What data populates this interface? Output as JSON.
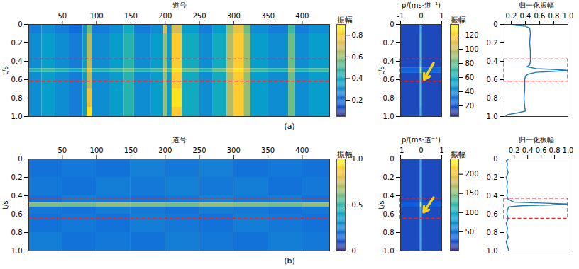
{
  "chart_data": [
    {
      "type": "heatmap",
      "caption": "(a)",
      "x_label": "道号",
      "y_label": "t/s",
      "xlim": [
        1,
        440
      ],
      "xticks": [
        50,
        100,
        150,
        200,
        250,
        300,
        350,
        400
      ],
      "ylim": [
        0,
        1
      ],
      "yticks": [
        0,
        0.2,
        0.4,
        0.6,
        0.8,
        {
          "value": 1,
          "label": "1.0"
        }
      ],
      "x_edges": [
        1,
        20,
        40,
        60,
        80,
        86,
        94,
        120,
        140,
        155,
        180,
        198,
        203,
        210,
        225,
        250,
        270,
        290,
        300,
        315,
        325,
        350,
        380,
        390,
        410,
        440
      ],
      "y_edges": [
        0,
        0.1,
        0.3,
        0.48,
        0.52,
        0.7,
        0.9,
        1
      ],
      "cells": [
        [
          0.25,
          0.3,
          0.25,
          0.2,
          0.3,
          0.55,
          0.25,
          0.3,
          0.4,
          0.25,
          0.3,
          0.7,
          0.3,
          0.7,
          0.35,
          0.25,
          0.35,
          0.6,
          0.75,
          0.55,
          0.3,
          0.25,
          0.5,
          0.25,
          0.3
        ],
        [
          0.3,
          0.35,
          0.3,
          0.25,
          0.35,
          0.65,
          0.3,
          0.35,
          0.45,
          0.3,
          0.35,
          0.6,
          0.35,
          0.8,
          0.4,
          0.3,
          0.4,
          0.65,
          0.8,
          0.6,
          0.35,
          0.3,
          0.55,
          0.3,
          0.35
        ],
        [
          0.3,
          0.35,
          0.3,
          0.25,
          0.35,
          0.65,
          0.3,
          0.35,
          0.45,
          0.3,
          0.35,
          0.6,
          0.35,
          0.8,
          0.4,
          0.3,
          0.4,
          0.65,
          0.8,
          0.6,
          0.35,
          0.3,
          0.55,
          0.3,
          0.35
        ],
        [
          0.45,
          0.5,
          0.45,
          0.4,
          0.5,
          0.75,
          0.45,
          0.5,
          0.55,
          0.45,
          0.5,
          0.7,
          0.5,
          0.85,
          0.55,
          0.45,
          0.55,
          0.75,
          0.85,
          0.7,
          0.5,
          0.45,
          0.65,
          0.45,
          0.5
        ],
        [
          0.3,
          0.35,
          0.3,
          0.25,
          0.35,
          0.65,
          0.3,
          0.35,
          0.45,
          0.3,
          0.35,
          0.6,
          0.35,
          0.8,
          0.4,
          0.3,
          0.4,
          0.65,
          0.8,
          0.6,
          0.35,
          0.3,
          0.55,
          0.3,
          0.35
        ],
        [
          0.3,
          0.35,
          0.3,
          0.25,
          0.35,
          0.75,
          0.3,
          0.35,
          0.45,
          0.3,
          0.35,
          0.6,
          0.35,
          0.85,
          0.4,
          0.3,
          0.4,
          0.65,
          0.8,
          0.6,
          0.35,
          0.3,
          0.55,
          0.3,
          0.35
        ],
        [
          0.3,
          0.35,
          0.3,
          0.25,
          0.35,
          0.85,
          0.3,
          0.35,
          0.45,
          0.3,
          0.35,
          0.6,
          0.35,
          0.8,
          0.4,
          0.3,
          0.4,
          0.65,
          0.8,
          0.6,
          0.35,
          0.3,
          0.55,
          0.3,
          0.35
        ]
      ],
      "colorbar": {
        "label": "振幅",
        "range": [
          0.05,
          0.9
        ],
        "ticks": [
          0.2,
          0.4,
          0.6,
          0.8
        ]
      },
      "highlight_t": [
        0.38,
        0.62
      ]
    },
    {
      "type": "heatmap",
      "x_label": "p/(ms·道⁻¹)",
      "y_label": "t/s",
      "xlim": [
        -1,
        1
      ],
      "xticks": [
        -1,
        0,
        1
      ],
      "ylim": [
        0,
        1
      ],
      "yticks": [
        0,
        0.2,
        0.4,
        0.6,
        0.8,
        {
          "value": 1,
          "label": "1.0"
        }
      ],
      "x_edges": [
        -1,
        -0.06,
        -0.02,
        0.02,
        0.06,
        1
      ],
      "y_edges": [
        0,
        0.1,
        0.4,
        0.47,
        0.53,
        0.6,
        0.9,
        1
      ],
      "cells": [
        [
          15,
          30,
          55,
          30,
          15
        ],
        [
          15,
          35,
          70,
          35,
          15
        ],
        [
          15,
          35,
          75,
          35,
          15
        ],
        [
          25,
          60,
          130,
          60,
          25
        ],
        [
          15,
          35,
          75,
          35,
          15
        ],
        [
          15,
          35,
          70,
          35,
          15
        ],
        [
          15,
          30,
          55,
          30,
          15
        ]
      ],
      "colorbar": {
        "label": "振幅",
        "range": [
          5,
          135
        ],
        "ticks": [
          20,
          40,
          60,
          80,
          100,
          120
        ]
      },
      "arrow": {
        "from": [
          0.6,
          0.42
        ],
        "to": [
          0.15,
          0.6
        ]
      },
      "highlight_t": [
        0.38,
        0.62
      ]
    },
    {
      "type": "line",
      "x_label": "归一化振幅",
      "xlim": [
        0.1,
        1
      ],
      "xticks": [
        0.2,
        0.4,
        0.6,
        0.8,
        {
          "value": 1,
          "label": "1.0"
        }
      ],
      "ylim": [
        0,
        1
      ],
      "yticks": [
        0,
        0.2,
        0.4,
        0.6,
        0.8,
        {
          "value": 1,
          "label": "1.0"
        }
      ],
      "series": [
        {
          "color": "#1f77b4",
          "amplitude": [
            0.12,
            0.4,
            0.46,
            0.47,
            0.46,
            0.47,
            0.47,
            0.46,
            0.42,
            0.55,
            0.85,
            1.0,
            0.8,
            0.55,
            0.44,
            0.4,
            0.39,
            0.39,
            0.38,
            0.39,
            0.4,
            0.3,
            0.15,
            0.12
          ],
          "t": [
            0,
            0.02,
            0.04,
            0.1,
            0.2,
            0.3,
            0.4,
            0.44,
            0.46,
            0.48,
            0.49,
            0.5,
            0.51,
            0.52,
            0.54,
            0.56,
            0.6,
            0.7,
            0.8,
            0.9,
            0.94,
            0.96,
            0.98,
            1.0
          ]
        }
      ],
      "highlight_t": [
        0.38,
        0.62
      ]
    },
    {
      "type": "heatmap",
      "caption": "(b)",
      "x_label": "道号",
      "y_label": "t/s",
      "xlim": [
        1,
        440
      ],
      "xticks": [
        50,
        100,
        150,
        200,
        250,
        300,
        350,
        400
      ],
      "ylim": [
        0,
        1
      ],
      "yticks": [
        0,
        0.2,
        0.4,
        0.6,
        0.8,
        {
          "value": 1,
          "label": "1.0"
        }
      ],
      "x_edges": [
        1,
        50,
        100,
        150,
        200,
        250,
        300,
        350,
        400,
        440
      ],
      "y_edges": [
        0,
        0.2,
        0.4,
        0.48,
        0.52,
        0.6,
        0.8,
        1
      ],
      "cells": [
        [
          0.2,
          0.22,
          0.2,
          0.25,
          0.22,
          0.25,
          0.2,
          0.22,
          0.2
        ],
        [
          0.22,
          0.2,
          0.24,
          0.22,
          0.25,
          0.22,
          0.24,
          0.2,
          0.22
        ],
        [
          0.2,
          0.24,
          0.22,
          0.2,
          0.22,
          0.25,
          0.22,
          0.24,
          0.2
        ],
        [
          0.62,
          0.6,
          0.65,
          0.62,
          0.6,
          0.65,
          0.62,
          0.6,
          0.65
        ],
        [
          0.22,
          0.2,
          0.24,
          0.22,
          0.2,
          0.24,
          0.22,
          0.2,
          0.22
        ],
        [
          0.2,
          0.22,
          0.2,
          0.24,
          0.22,
          0.2,
          0.24,
          0.22,
          0.2
        ],
        [
          0.24,
          0.2,
          0.22,
          0.2,
          0.24,
          0.22,
          0.2,
          0.24,
          0.22
        ]
      ],
      "colorbar": {
        "label": "振幅",
        "range": [
          0,
          1
        ],
        "ticks": [
          0,
          0.5,
          {
            "value": 1,
            "label": "1.0"
          }
        ]
      },
      "highlight_t": [
        0.43,
        0.65
      ]
    },
    {
      "type": "heatmap",
      "x_label": "p/(ms·道⁻¹)",
      "y_label": "t/s",
      "xlim": [
        -1,
        1
      ],
      "xticks": [
        -1,
        0,
        1
      ],
      "ylim": [
        0,
        1
      ],
      "yticks": [
        0,
        0.2,
        0.4,
        0.6,
        0.8,
        {
          "value": 1,
          "label": "1.0"
        }
      ],
      "x_edges": [
        -1,
        -0.06,
        -0.02,
        0.02,
        0.06,
        1
      ],
      "y_edges": [
        0,
        0.1,
        0.4,
        0.47,
        0.53,
        0.6,
        0.9,
        1
      ],
      "cells": [
        [
          20,
          40,
          70,
          40,
          20
        ],
        [
          20,
          45,
          85,
          45,
          20
        ],
        [
          20,
          45,
          90,
          45,
          20
        ],
        [
          30,
          90,
          230,
          90,
          30
        ],
        [
          20,
          45,
          90,
          45,
          20
        ],
        [
          20,
          45,
          85,
          45,
          20
        ],
        [
          20,
          40,
          70,
          40,
          20
        ]
      ],
      "colorbar": {
        "label": "振幅",
        "range": [
          0,
          240
        ],
        "ticks": [
          50,
          100,
          150,
          200
        ]
      },
      "arrow": {
        "from": [
          0.6,
          0.42
        ],
        "to": [
          0.12,
          0.58
        ]
      },
      "highlight_t": [
        0.43,
        0.65
      ]
    },
    {
      "type": "line",
      "x_label": "归一化振幅",
      "xlim": [
        0.05,
        1
      ],
      "xticks": [
        0.2,
        0.4,
        0.6,
        0.8,
        {
          "value": 1,
          "label": "1.0"
        }
      ],
      "ylim": [
        0,
        1
      ],
      "yticks": [
        0,
        0.2,
        0.4,
        0.6,
        0.8,
        {
          "value": 1,
          "label": "1.0"
        }
      ],
      "series": [
        {
          "color": "#1f77b4",
          "amplitude": [
            0.12,
            0.08,
            0.1,
            0.09,
            0.11,
            0.08,
            0.1,
            0.09,
            0.1,
            0.09,
            0.11,
            0.2,
            0.6,
            1.0,
            0.75,
            0.3,
            0.12,
            0.1,
            0.09,
            0.11,
            0.08,
            0.1,
            0.09,
            0.11,
            0.08,
            0.1,
            0.12
          ],
          "t": [
            0,
            0.02,
            0.05,
            0.1,
            0.15,
            0.2,
            0.25,
            0.3,
            0.35,
            0.4,
            0.44,
            0.47,
            0.48,
            0.49,
            0.5,
            0.51,
            0.52,
            0.55,
            0.6,
            0.65,
            0.7,
            0.75,
            0.8,
            0.85,
            0.9,
            0.95,
            1.0
          ]
        }
      ],
      "highlight_t": [
        0.43,
        0.65
      ]
    }
  ]
}
